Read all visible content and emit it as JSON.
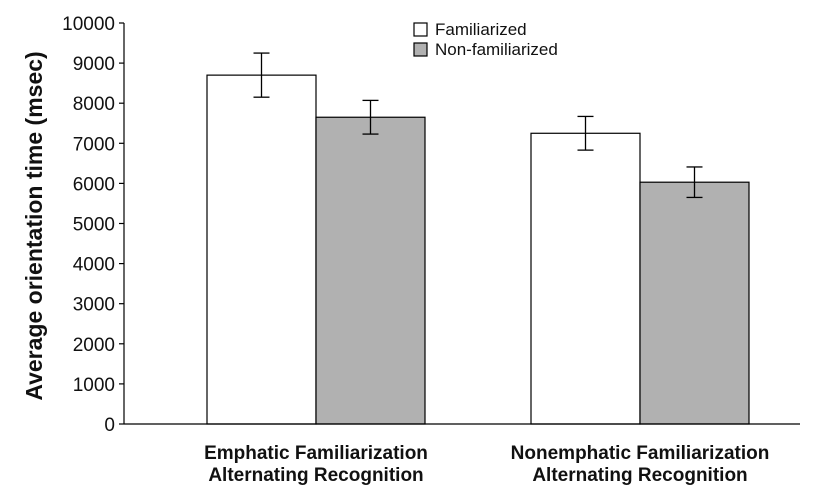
{
  "chart_data": {
    "type": "bar",
    "title": "",
    "xlabel": "",
    "ylabel": "Average orientation time (msec)",
    "ylim": [
      0,
      10000
    ],
    "yticks": [
      0,
      1000,
      2000,
      3000,
      4000,
      5000,
      6000,
      7000,
      8000,
      9000,
      10000
    ],
    "grid": false,
    "legend_position": "top-center",
    "categories": [
      [
        "Emphatic Familiarization",
        "Alternating Recognition"
      ],
      [
        "Nonemphatic Familiarization",
        "Alternating Recognition"
      ]
    ],
    "series": [
      {
        "name": "Familiarized",
        "color": "#ffffff",
        "values": [
          8700,
          7250
        ],
        "error": [
          550,
          420
        ]
      },
      {
        "name": "Non-familiarized",
        "color": "#b1b1b1",
        "values": [
          7650,
          6030
        ],
        "error": [
          420,
          380
        ]
      }
    ]
  }
}
